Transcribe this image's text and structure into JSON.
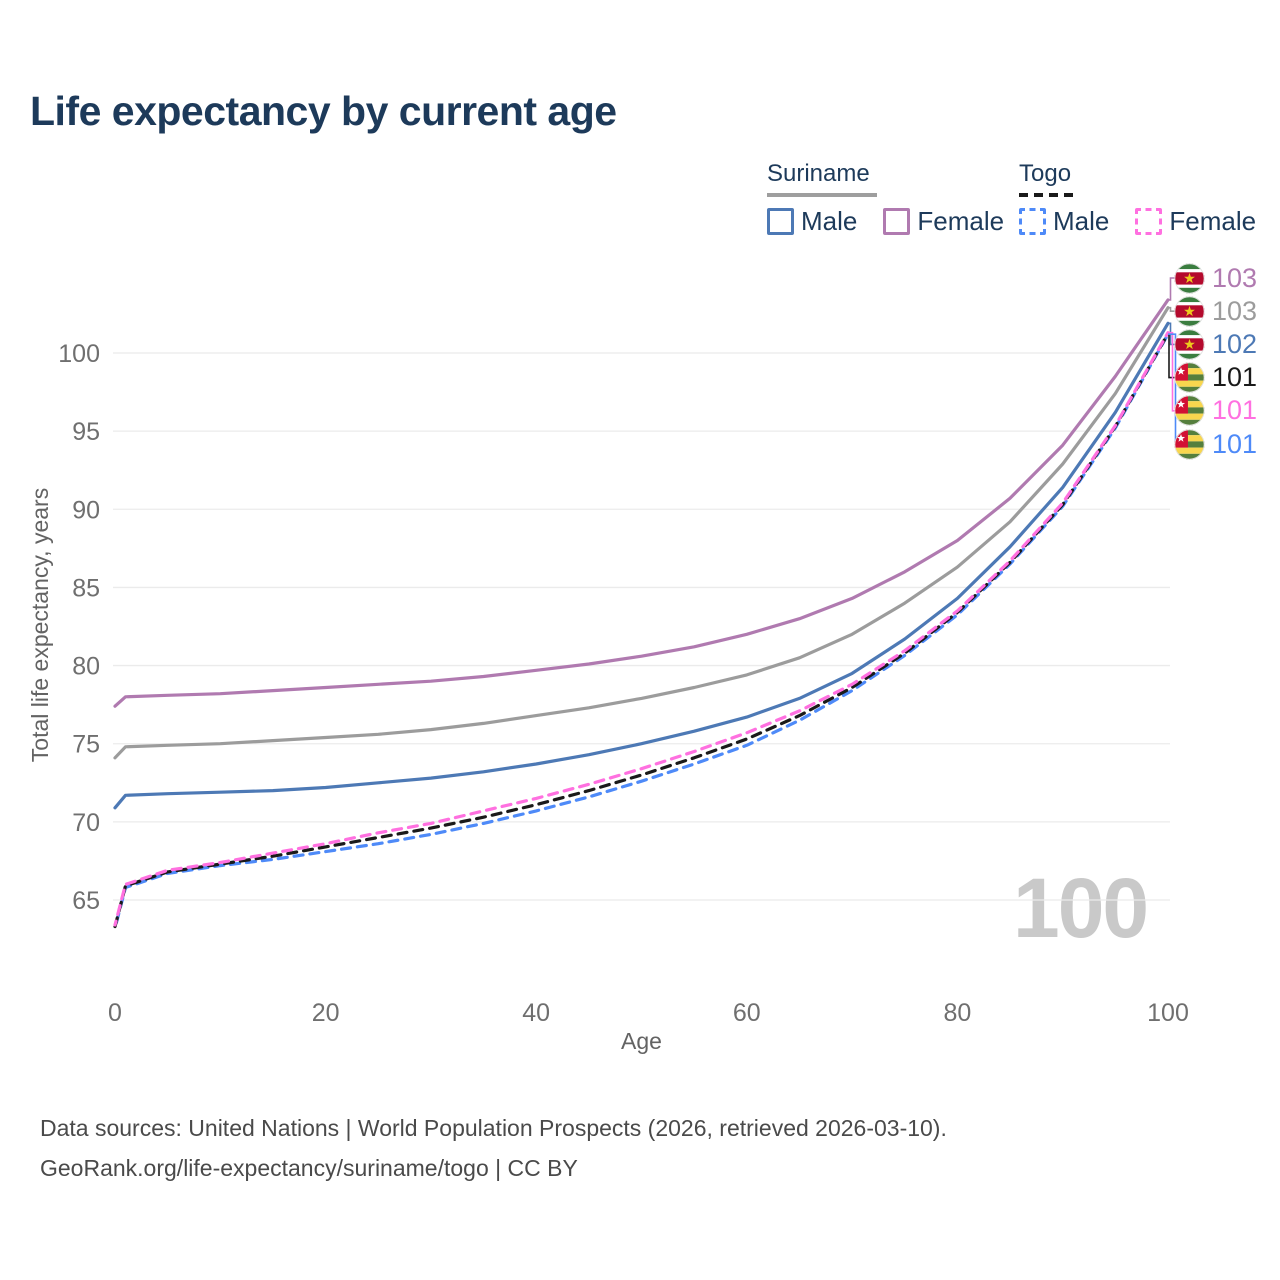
{
  "title": "Life expectancy by current age",
  "watermark": "100",
  "footer": {
    "line1": "Data sources: United Nations | World Population Prospects (2026, retrieved 2026-03-10).",
    "line2": "GeoRank.org/life-expectancy/suriname/togo | CC BY"
  },
  "legend": {
    "groups": [
      {
        "name": "Suriname",
        "underline_style": "solid",
        "underline_color": "#9e9e9e",
        "items": [
          {
            "label": "Male",
            "color": "#4d79b5",
            "dash": false
          },
          {
            "label": "Female",
            "color": "#b07ab0",
            "dash": false
          }
        ]
      },
      {
        "name": "Togo",
        "underline_style": "dashed",
        "underline_color": "#1a1a1a",
        "items": [
          {
            "label": "Male",
            "color": "#4e8af8",
            "dash": true
          },
          {
            "label": "Female",
            "color": "#ff70e0",
            "dash": true
          }
        ]
      }
    ]
  },
  "chart_data": {
    "type": "line",
    "title": "Life expectancy by current age",
    "xlabel": "Age",
    "ylabel": "Total life expectancy, years",
    "xlim": [
      0,
      100
    ],
    "ylim": [
      62,
      104.5
    ],
    "x_ticks": [
      0,
      20,
      40,
      60,
      80,
      100
    ],
    "y_ticks": [
      65,
      70,
      75,
      80,
      85,
      90,
      95,
      100
    ],
    "grid": "horizontal",
    "legend_position": "top-right",
    "ages": [
      0,
      1,
      5,
      10,
      15,
      20,
      25,
      30,
      35,
      40,
      45,
      50,
      55,
      60,
      65,
      70,
      75,
      80,
      85,
      90,
      95,
      100
    ],
    "series": [
      {
        "name": "Suriname Female",
        "country": "Suriname",
        "sex": "female",
        "color": "#b07ab0",
        "dash": false,
        "flag": "suriname",
        "end_label": "103",
        "values": [
          77.4,
          78.0,
          78.1,
          78.2,
          78.4,
          78.6,
          78.8,
          79.0,
          79.3,
          79.7,
          80.1,
          80.6,
          81.2,
          82.0,
          83.0,
          84.3,
          86.0,
          88.0,
          90.7,
          94.1,
          98.5,
          103.4
        ]
      },
      {
        "name": "Suriname Both sexes",
        "country": "Suriname",
        "sex": "both",
        "color": "#9c9c9c",
        "dash": false,
        "flag": "suriname",
        "end_label": "103",
        "values": [
          74.1,
          74.8,
          74.9,
          75.0,
          75.2,
          75.4,
          75.6,
          75.9,
          76.3,
          76.8,
          77.3,
          77.9,
          78.6,
          79.4,
          80.5,
          82.0,
          84.0,
          86.3,
          89.2,
          92.9,
          97.4,
          102.9
        ]
      },
      {
        "name": "Suriname Male",
        "country": "Suriname",
        "sex": "male",
        "color": "#4d79b5",
        "dash": false,
        "flag": "suriname",
        "end_label": "102",
        "values": [
          70.9,
          71.7,
          71.8,
          71.9,
          72.0,
          72.2,
          72.5,
          72.8,
          73.2,
          73.7,
          74.3,
          75.0,
          75.8,
          76.7,
          77.9,
          79.5,
          81.7,
          84.3,
          87.6,
          91.4,
          96.2,
          101.9
        ]
      },
      {
        "name": "Togo Both sexes",
        "country": "Togo",
        "sex": "both",
        "color": "#1a1a1a",
        "dash": true,
        "flag": "togo",
        "end_label": "101",
        "values": [
          63.3,
          65.9,
          66.8,
          67.3,
          67.8,
          68.4,
          69.0,
          69.6,
          70.3,
          71.1,
          72.0,
          73.0,
          74.1,
          75.3,
          76.8,
          78.6,
          80.8,
          83.4,
          86.6,
          90.3,
          95.3,
          101.25
        ]
      },
      {
        "name": "Togo Female",
        "country": "Togo",
        "sex": "female",
        "color": "#ff70e0",
        "dash": true,
        "flag": "togo",
        "end_label": "101",
        "values": [
          63.4,
          66.0,
          66.9,
          67.4,
          68.0,
          68.6,
          69.3,
          69.9,
          70.7,
          71.5,
          72.4,
          73.4,
          74.5,
          75.7,
          77.1,
          78.8,
          80.95,
          83.5,
          86.7,
          90.4,
          95.35,
          101.3
        ]
      },
      {
        "name": "Togo Male",
        "country": "Togo",
        "sex": "male",
        "color": "#4e8af8",
        "dash": true,
        "flag": "togo",
        "end_label": "101",
        "values": [
          63.2,
          65.8,
          66.7,
          67.2,
          67.6,
          68.1,
          68.6,
          69.2,
          69.9,
          70.7,
          71.6,
          72.6,
          73.7,
          74.9,
          76.5,
          78.4,
          80.65,
          83.25,
          86.5,
          90.2,
          95.2,
          101.2
        ]
      }
    ]
  }
}
